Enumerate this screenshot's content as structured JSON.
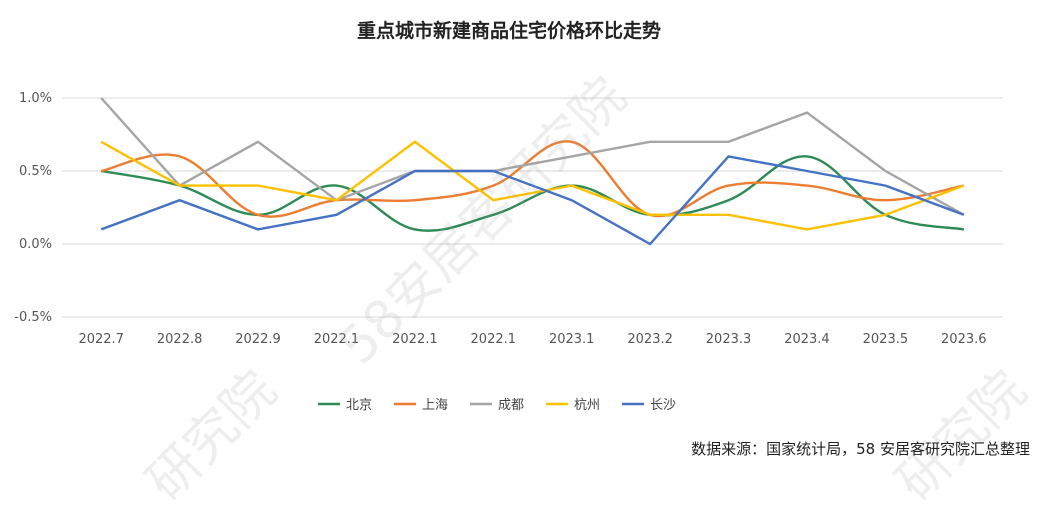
{
  "chart_data": {
    "type": "line",
    "title": "重点城市新建商品住宅价格环比走势",
    "categories": [
      "2022.7",
      "2022.8",
      "2022.9",
      "2022.1",
      "2022.1",
      "2022.1",
      "2023.1",
      "2023.2",
      "2023.3",
      "2023.4",
      "2023.5",
      "2023.6"
    ],
    "y_ticks": [
      "1.0%",
      "0.5%",
      "0.0%",
      "-0.5%"
    ],
    "ylim": [
      -0.5,
      1.0
    ],
    "grid": true,
    "legend_position": "bottom",
    "series": [
      {
        "name": "北京",
        "color": "#2e8b57",
        "values": [
          0.5,
          0.4,
          0.2,
          0.4,
          0.1,
          0.2,
          0.4,
          0.2,
          0.3,
          0.6,
          0.2,
          0.1
        ]
      },
      {
        "name": "上海",
        "color": "#ed7d31",
        "values": [
          0.5,
          0.6,
          0.2,
          0.3,
          0.3,
          0.4,
          0.7,
          0.2,
          0.4,
          0.4,
          0.3,
          0.4
        ]
      },
      {
        "name": "成都",
        "color": "#a5a5a5",
        "values": [
          1.0,
          0.4,
          0.7,
          0.3,
          0.5,
          0.5,
          0.6,
          0.7,
          0.7,
          0.9,
          0.5,
          0.2
        ]
      },
      {
        "name": "杭州",
        "color": "#ffc000",
        "values": [
          0.7,
          0.4,
          0.4,
          0.3,
          0.7,
          0.3,
          0.4,
          0.2,
          0.2,
          0.1,
          0.2,
          0.4
        ]
      },
      {
        "name": "长沙",
        "color": "#4472c4",
        "values": [
          0.1,
          0.3,
          0.1,
          0.2,
          0.5,
          0.5,
          0.3,
          0.0,
          0.6,
          0.5,
          0.4,
          0.2
        ]
      }
    ]
  },
  "source_note": "数据来源：国家统计局，58 安居客研究院汇总整理",
  "watermark_text": "58安居客研究院",
  "watermark_text_short": "研究院"
}
